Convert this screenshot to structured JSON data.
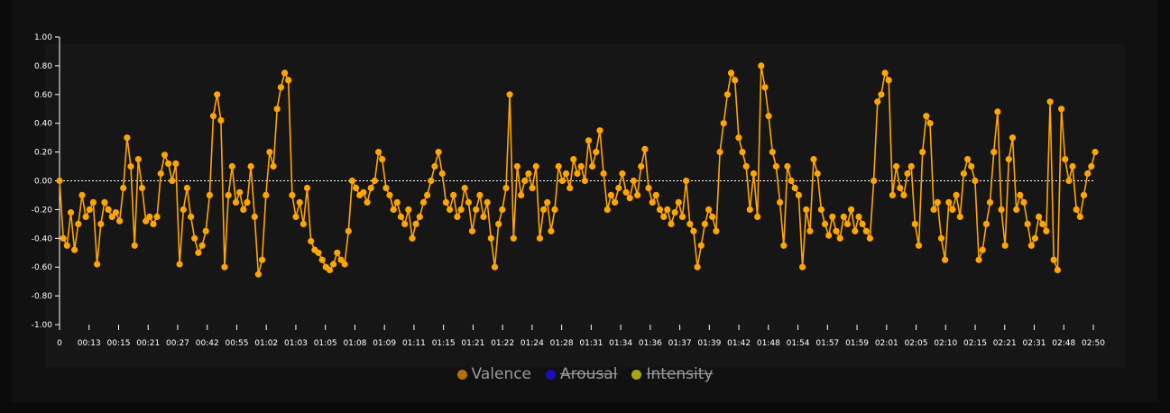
{
  "chart_data": {
    "type": "line",
    "title": "",
    "xlabel": "",
    "ylabel": "",
    "ylim": [
      -1.0,
      1.0
    ],
    "y_ticks": [
      "1.00",
      "0.80",
      "0.60",
      "0.40",
      "0.20",
      "0.00",
      "-0.20",
      "-0.40",
      "-0.60",
      "-0.80",
      "-1.00"
    ],
    "x_ticks": [
      "0",
      "00:13",
      "00:15",
      "00:21",
      "00:27",
      "00:42",
      "00:55",
      "01:02",
      "01:03",
      "01:05",
      "01:08",
      "01:09",
      "01:11",
      "01:15",
      "01:21",
      "01:22",
      "01:24",
      "01:28",
      "01:31",
      "01:34",
      "01:36",
      "01:37",
      "01:39",
      "01:42",
      "01:48",
      "01:54",
      "01:57",
      "01:59",
      "02:01",
      "02:05",
      "02:10",
      "02:15",
      "02:21",
      "02:31",
      "02:48",
      "02:50"
    ],
    "zero_line": true,
    "series": [
      {
        "name": "Valence",
        "color": "#ffa500",
        "visible": true,
        "values": [
          0.0,
          -0.4,
          -0.45,
          -0.22,
          -0.48,
          -0.3,
          -0.1,
          -0.25,
          -0.2,
          -0.15,
          -0.58,
          -0.3,
          -0.15,
          -0.2,
          -0.25,
          -0.22,
          -0.28,
          -0.05,
          0.3,
          0.1,
          -0.45,
          0.15,
          -0.05,
          -0.28,
          -0.25,
          -0.3,
          -0.25,
          0.05,
          0.18,
          0.12,
          0.0,
          0.12,
          -0.58,
          -0.2,
          -0.05,
          -0.25,
          -0.4,
          -0.5,
          -0.45,
          -0.35,
          -0.1,
          0.45,
          0.6,
          0.42,
          -0.6,
          -0.1,
          0.1,
          -0.15,
          -0.08,
          -0.2,
          -0.15,
          0.1,
          -0.25,
          -0.65,
          -0.55,
          -0.1,
          0.2,
          0.1,
          0.5,
          0.65,
          0.75,
          0.7,
          -0.1,
          -0.25,
          -0.15,
          -0.3,
          -0.05,
          -0.42,
          -0.48,
          -0.5,
          -0.55,
          -0.6,
          -0.62,
          -0.58,
          -0.5,
          -0.55,
          -0.58,
          -0.35,
          0.0,
          -0.05,
          -0.1,
          -0.08,
          -0.15,
          -0.05,
          0.0,
          0.2,
          0.15,
          -0.05,
          -0.1,
          -0.2,
          -0.15,
          -0.25,
          -0.3,
          -0.2,
          -0.4,
          -0.3,
          -0.25,
          -0.15,
          -0.1,
          0.0,
          0.1,
          0.2,
          0.05,
          -0.15,
          -0.2,
          -0.1,
          -0.25,
          -0.2,
          -0.05,
          -0.15,
          -0.35,
          -0.2,
          -0.1,
          -0.25,
          -0.15,
          -0.4,
          -0.6,
          -0.3,
          -0.2,
          -0.05,
          0.6,
          -0.4,
          0.1,
          -0.1,
          0.0,
          0.05,
          -0.05,
          0.1,
          -0.4,
          -0.2,
          -0.15,
          -0.35,
          -0.2,
          0.1,
          0.0,
          0.05,
          -0.05,
          0.15,
          0.05,
          0.1,
          0.0,
          0.28,
          0.1,
          0.2,
          0.35,
          0.05,
          -0.2,
          -0.1,
          -0.15,
          -0.05,
          0.05,
          -0.08,
          -0.12,
          0.0,
          -0.1,
          0.1,
          0.22,
          -0.05,
          -0.15,
          -0.1,
          -0.2,
          -0.25,
          -0.2,
          -0.3,
          -0.22,
          -0.15,
          -0.25,
          0.0,
          -0.3,
          -0.35,
          -0.6,
          -0.45,
          -0.3,
          -0.2,
          -0.25,
          -0.35,
          0.2,
          0.4,
          0.6,
          0.75,
          0.7,
          0.3,
          0.2,
          0.1,
          -0.2,
          0.05,
          -0.25,
          0.8,
          0.65,
          0.45,
          0.2,
          0.1,
          -0.15,
          -0.45,
          0.1,
          0.0,
          -0.05,
          -0.1,
          -0.6,
          -0.2,
          -0.35,
          0.15,
          0.05,
          -0.2,
          -0.3,
          -0.38,
          -0.25,
          -0.35,
          -0.4,
          -0.25,
          -0.3,
          -0.2,
          -0.35,
          -0.25,
          -0.3,
          -0.35,
          -0.4,
          0.0,
          0.55,
          0.6,
          0.75,
          0.7,
          -0.1,
          0.1,
          -0.05,
          -0.1,
          0.05,
          0.1,
          -0.3,
          -0.45,
          0.2,
          0.45,
          0.4,
          -0.2,
          -0.15,
          -0.4,
          -0.55,
          -0.15,
          -0.2,
          -0.1,
          -0.25,
          0.05,
          0.15,
          0.1,
          0.0,
          -0.55,
          -0.48,
          -0.3,
          -0.15,
          0.2,
          0.48,
          -0.2,
          -0.45,
          0.15,
          0.3,
          -0.2,
          -0.1,
          -0.15,
          -0.3,
          -0.45,
          -0.4,
          -0.25,
          -0.3,
          -0.35,
          0.55,
          -0.55,
          -0.62,
          0.5,
          0.15,
          0.0,
          0.1,
          -0.2,
          -0.25,
          -0.1,
          0.05,
          0.1,
          0.2
        ]
      },
      {
        "name": "Arousal",
        "color": "#1f0bbf",
        "visible": false,
        "values": []
      },
      {
        "name": "Intensity",
        "color": "#b3b300",
        "visible": false,
        "values": []
      }
    ],
    "legend_position": "bottom-center"
  },
  "legend": {
    "items": [
      {
        "label": "Valence",
        "color": "#b36f0a",
        "hidden": false
      },
      {
        "label": "Arousal",
        "color": "#1f0bbf",
        "hidden": true
      },
      {
        "label": "Intensity",
        "color": "#a8a812",
        "hidden": true
      }
    ]
  }
}
